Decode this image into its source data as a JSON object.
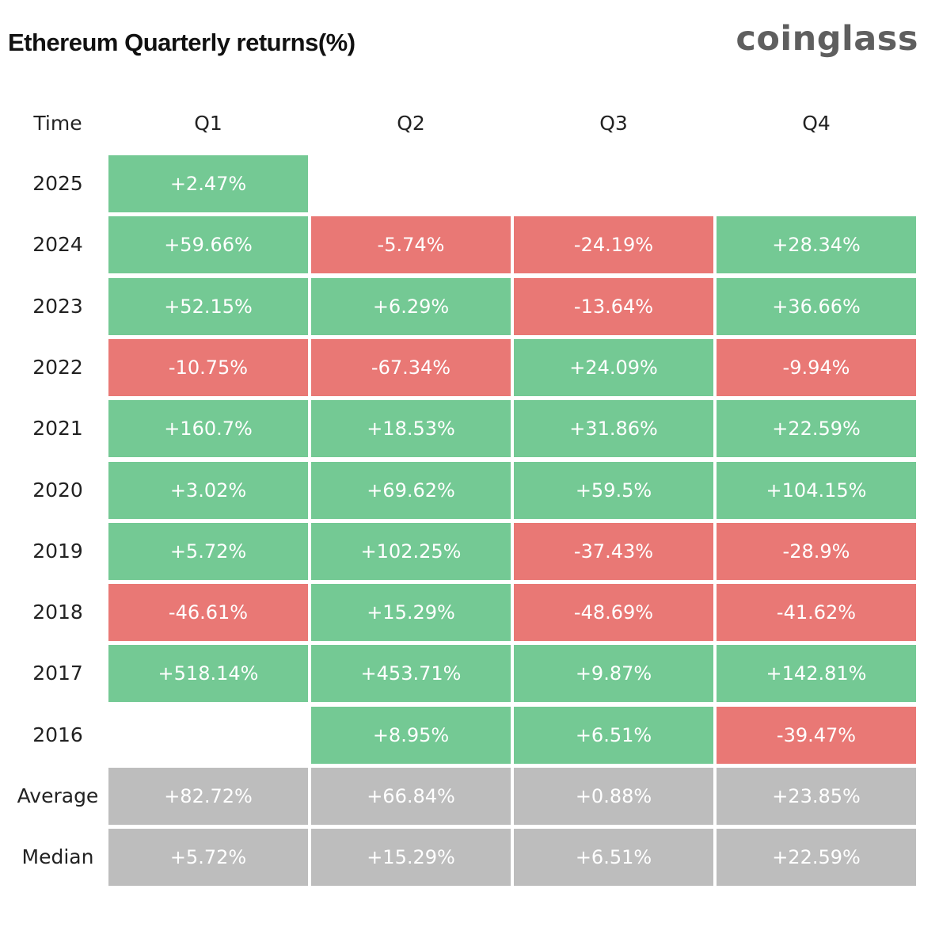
{
  "title": "Ethereum Quarterly returns(%)",
  "brand": "coinglass",
  "chart_data": {
    "type": "table",
    "title": "Ethereum Quarterly returns(%)",
    "header_label": "Time",
    "columns": [
      "Q1",
      "Q2",
      "Q3",
      "Q4"
    ],
    "colors": {
      "positive": "#74c994",
      "negative": "#e97875",
      "stat": "#bdbdbd"
    },
    "rows": [
      {
        "label": "2025",
        "values": [
          2.47,
          null,
          null,
          null
        ],
        "display": [
          "+2.47%",
          "",
          "",
          ""
        ]
      },
      {
        "label": "2024",
        "values": [
          59.66,
          -5.74,
          -24.19,
          28.34
        ],
        "display": [
          "+59.66%",
          "-5.74%",
          "-24.19%",
          "+28.34%"
        ]
      },
      {
        "label": "2023",
        "values": [
          52.15,
          6.29,
          -13.64,
          36.66
        ],
        "display": [
          "+52.15%",
          "+6.29%",
          "-13.64%",
          "+36.66%"
        ]
      },
      {
        "label": "2022",
        "values": [
          -10.75,
          -67.34,
          24.09,
          -9.94
        ],
        "display": [
          "-10.75%",
          "-67.34%",
          "+24.09%",
          "-9.94%"
        ]
      },
      {
        "label": "2021",
        "values": [
          160.7,
          18.53,
          31.86,
          22.59
        ],
        "display": [
          "+160.7%",
          "+18.53%",
          "+31.86%",
          "+22.59%"
        ]
      },
      {
        "label": "2020",
        "values": [
          3.02,
          69.62,
          59.5,
          104.15
        ],
        "display": [
          "+3.02%",
          "+69.62%",
          "+59.5%",
          "+104.15%"
        ]
      },
      {
        "label": "2019",
        "values": [
          5.72,
          102.25,
          -37.43,
          -28.9
        ],
        "display": [
          "+5.72%",
          "+102.25%",
          "-37.43%",
          "-28.9%"
        ]
      },
      {
        "label": "2018",
        "values": [
          -46.61,
          15.29,
          -48.69,
          -41.62
        ],
        "display": [
          "-46.61%",
          "+15.29%",
          "-48.69%",
          "-41.62%"
        ]
      },
      {
        "label": "2017",
        "values": [
          518.14,
          453.71,
          9.87,
          142.81
        ],
        "display": [
          "+518.14%",
          "+453.71%",
          "+9.87%",
          "+142.81%"
        ]
      },
      {
        "label": "2016",
        "values": [
          null,
          8.95,
          6.51,
          -39.47
        ],
        "display": [
          "",
          "+8.95%",
          "+6.51%",
          "-39.47%"
        ]
      }
    ],
    "stats": [
      {
        "label": "Average",
        "values": [
          82.72,
          66.84,
          0.88,
          23.85
        ],
        "display": [
          "+82.72%",
          "+66.84%",
          "+0.88%",
          "+23.85%"
        ]
      },
      {
        "label": "Median",
        "values": [
          5.72,
          15.29,
          6.51,
          22.59
        ],
        "display": [
          "+5.72%",
          "+15.29%",
          "+6.51%",
          "+22.59%"
        ]
      }
    ]
  }
}
